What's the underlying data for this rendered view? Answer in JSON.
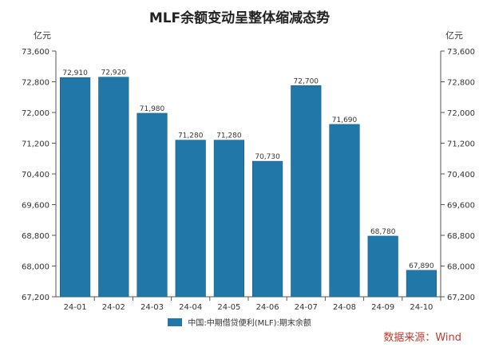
{
  "chart_data": {
    "type": "bar",
    "title": "MLF余额变动呈整体缩减态势",
    "unit_left": "亿元",
    "unit_right": "亿元",
    "categories": [
      "24-01",
      "24-02",
      "24-03",
      "24-04",
      "24-05",
      "24-06",
      "24-07",
      "24-08",
      "24-09",
      "24-10"
    ],
    "values": [
      72910,
      72920,
      71980,
      71280,
      71280,
      70730,
      72700,
      71690,
      68780,
      67890
    ],
    "value_labels": [
      "72,910",
      "72,920",
      "71,980",
      "71,280",
      "71,280",
      "70,730",
      "72,700",
      "71,690",
      "68,780",
      "67,890"
    ],
    "ylim": [
      67200,
      73600
    ],
    "yticks": [
      67200,
      68000,
      68800,
      69600,
      70400,
      71200,
      72000,
      72800,
      73600
    ],
    "ytick_labels": [
      "67,200",
      "68,000",
      "68,800",
      "69,600",
      "70,400",
      "71,200",
      "72,000",
      "72,800",
      "73,600"
    ],
    "series_name": "中国:中期借贷便利(MLF):期末余额",
    "grid": false,
    "legend_position": "bottom-center",
    "source": "数据来源：Wind",
    "colors": {
      "bar": "#2178a8",
      "bar_edge": "#1a5f86",
      "axis": "#555555",
      "source": "#c0392b"
    }
  }
}
